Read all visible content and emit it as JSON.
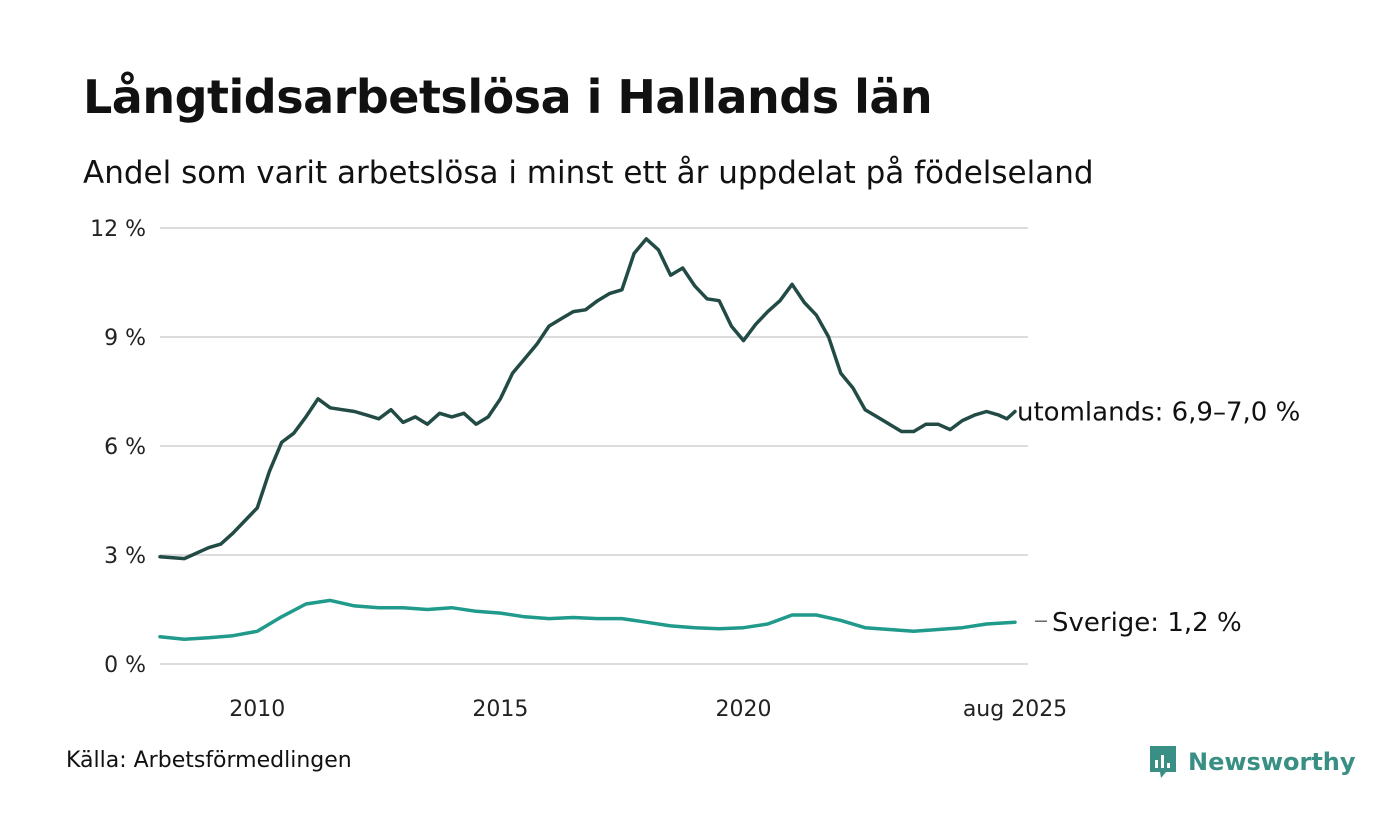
{
  "header": {
    "title": "Långtidsarbetslösa i Hallands län",
    "subtitle": "Andel som varit arbetslösa i minst ett år uppdelat på födelseland"
  },
  "footer": {
    "source": "Källa: Arbetsförmedlingen",
    "brand": "Newsworthy"
  },
  "colors": {
    "utomlands": "#234b45",
    "sverige": "#1f9a8b",
    "grid": "#dcdcdc",
    "brand": "#3a8f85"
  },
  "icons": {
    "brand_logo": "bar-chart-speech-bubble-icon"
  },
  "chart_data": {
    "type": "line",
    "title": "Långtidsarbetslösa i Hallands län",
    "subtitle": "Andel som varit arbetslösa i minst ett år uppdelat på födelseland",
    "y_ticks": [
      "0 %",
      "3 %",
      "6 %",
      "9 %",
      "12 %"
    ],
    "y_tick_values": [
      0,
      3,
      6,
      9,
      12
    ],
    "ylim": [
      0,
      12
    ],
    "x_ticks": [
      "2010",
      "2015",
      "2020",
      "aug 2025"
    ],
    "x_tick_values": [
      "2010-01",
      "2015-01",
      "2020-01",
      "2025-08"
    ],
    "xlim": [
      "2008-01",
      "2025-08"
    ],
    "grid": true,
    "series": [
      {
        "key": "utomlands",
        "end_label": "utomlands: 6,9–7,0 %",
        "points": [
          [
            "2008-01",
            2.95
          ],
          [
            "2008-07",
            2.9
          ],
          [
            "2009-01",
            3.2
          ],
          [
            "2009-04",
            3.3
          ],
          [
            "2009-07",
            3.6
          ],
          [
            "2009-10",
            3.95
          ],
          [
            "2010-01",
            4.3
          ],
          [
            "2010-04",
            5.3
          ],
          [
            "2010-07",
            6.1
          ],
          [
            "2010-10",
            6.35
          ],
          [
            "2011-01",
            6.8
          ],
          [
            "2011-04",
            7.3
          ],
          [
            "2011-07",
            7.05
          ],
          [
            "2011-10",
            7.0
          ],
          [
            "2012-01",
            6.95
          ],
          [
            "2012-04",
            6.85
          ],
          [
            "2012-07",
            6.75
          ],
          [
            "2012-10",
            7.0
          ],
          [
            "2013-01",
            6.65
          ],
          [
            "2013-04",
            6.8
          ],
          [
            "2013-07",
            6.6
          ],
          [
            "2013-10",
            6.9
          ],
          [
            "2014-01",
            6.8
          ],
          [
            "2014-04",
            6.9
          ],
          [
            "2014-07",
            6.6
          ],
          [
            "2014-10",
            6.8
          ],
          [
            "2015-01",
            7.3
          ],
          [
            "2015-04",
            8.0
          ],
          [
            "2015-07",
            8.4
          ],
          [
            "2015-10",
            8.8
          ],
          [
            "2016-01",
            9.3
          ],
          [
            "2016-04",
            9.5
          ],
          [
            "2016-07",
            9.7
          ],
          [
            "2016-10",
            9.75
          ],
          [
            "2017-01",
            10.0
          ],
          [
            "2017-04",
            10.2
          ],
          [
            "2017-07",
            10.3
          ],
          [
            "2017-10",
            11.3
          ],
          [
            "2018-01",
            11.7
          ],
          [
            "2018-04",
            11.4
          ],
          [
            "2018-07",
            10.7
          ],
          [
            "2018-10",
            10.9
          ],
          [
            "2019-01",
            10.4
          ],
          [
            "2019-04",
            10.05
          ],
          [
            "2019-07",
            10.0
          ],
          [
            "2019-10",
            9.3
          ],
          [
            "2020-01",
            8.9
          ],
          [
            "2020-04",
            9.35
          ],
          [
            "2020-07",
            9.7
          ],
          [
            "2020-10",
            10.0
          ],
          [
            "2021-01",
            10.45
          ],
          [
            "2021-04",
            9.95
          ],
          [
            "2021-07",
            9.6
          ],
          [
            "2021-10",
            9.0
          ],
          [
            "2022-01",
            8.0
          ],
          [
            "2022-04",
            7.6
          ],
          [
            "2022-07",
            7.0
          ],
          [
            "2022-10",
            6.8
          ],
          [
            "2023-01",
            6.6
          ],
          [
            "2023-04",
            6.4
          ],
          [
            "2023-07",
            6.4
          ],
          [
            "2023-10",
            6.6
          ],
          [
            "2024-01",
            6.6
          ],
          [
            "2024-04",
            6.45
          ],
          [
            "2024-07",
            6.7
          ],
          [
            "2024-10",
            6.85
          ],
          [
            "2025-01",
            6.95
          ],
          [
            "2025-04",
            6.85
          ],
          [
            "2025-06",
            6.75
          ],
          [
            "2025-08",
            6.95
          ]
        ]
      },
      {
        "key": "sverige",
        "end_label": "Sverige: 1,2 %",
        "points": [
          [
            "2008-01",
            0.75
          ],
          [
            "2008-07",
            0.68
          ],
          [
            "2009-01",
            0.72
          ],
          [
            "2009-07",
            0.78
          ],
          [
            "2010-01",
            0.9
          ],
          [
            "2010-07",
            1.3
          ],
          [
            "2011-01",
            1.65
          ],
          [
            "2011-07",
            1.75
          ],
          [
            "2012-01",
            1.6
          ],
          [
            "2012-07",
            1.55
          ],
          [
            "2013-01",
            1.55
          ],
          [
            "2013-07",
            1.5
          ],
          [
            "2014-01",
            1.55
          ],
          [
            "2014-07",
            1.45
          ],
          [
            "2015-01",
            1.4
          ],
          [
            "2015-07",
            1.3
          ],
          [
            "2016-01",
            1.25
          ],
          [
            "2016-07",
            1.28
          ],
          [
            "2017-01",
            1.25
          ],
          [
            "2017-07",
            1.25
          ],
          [
            "2018-01",
            1.15
          ],
          [
            "2018-07",
            1.05
          ],
          [
            "2019-01",
            1.0
          ],
          [
            "2019-07",
            0.97
          ],
          [
            "2020-01",
            1.0
          ],
          [
            "2020-07",
            1.1
          ],
          [
            "2021-01",
            1.35
          ],
          [
            "2021-07",
            1.35
          ],
          [
            "2022-01",
            1.2
          ],
          [
            "2022-07",
            1.0
          ],
          [
            "2023-01",
            0.95
          ],
          [
            "2023-07",
            0.9
          ],
          [
            "2024-01",
            0.95
          ],
          [
            "2024-07",
            1.0
          ],
          [
            "2025-01",
            1.1
          ],
          [
            "2025-08",
            1.15
          ]
        ]
      }
    ]
  }
}
